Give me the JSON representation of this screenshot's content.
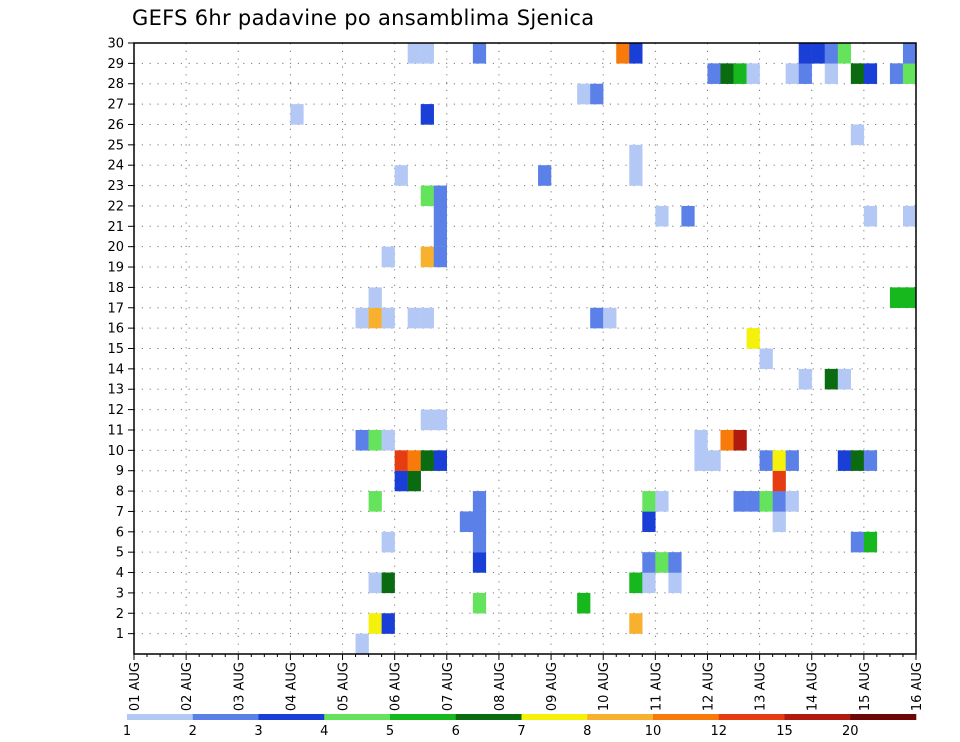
{
  "chart_data": {
    "type": "heatmap",
    "title": "GEFS 6hr padavine po ansamblima Sjenica",
    "x_tick_labels": [
      "01 AUG",
      "02 AUG",
      "03 AUG",
      "04 AUG",
      "05 AUG",
      "06 AUG",
      "07 AUG",
      "08 AUG",
      "09 AUG",
      "10 AUG",
      "11 AUG",
      "12 AUG",
      "13 AUG",
      "14 AUG",
      "15 AUG",
      "16 AUG"
    ],
    "x_range_days": [
      0,
      15
    ],
    "y_range_members": [
      0,
      30
    ],
    "y_tick_labels": [
      "1",
      "2",
      "3",
      "4",
      "5",
      "6",
      "7",
      "8",
      "9",
      "10",
      "11",
      "12",
      "13",
      "14",
      "15",
      "16",
      "17",
      "18",
      "19",
      "20",
      "21",
      "22",
      "23",
      "24",
      "25",
      "26",
      "27",
      "28",
      "29",
      "30"
    ],
    "grid": true,
    "colorbar": {
      "position": "bottom",
      "colors": [
        "#b4c8f5",
        "#5b80e8",
        "#1a3fd6",
        "#66e35c",
        "#17b81d",
        "#0a6b10",
        "#f5f10a",
        "#f7b12f",
        "#f77a0a",
        "#e63c11",
        "#b11a0e",
        "#6e0606"
      ],
      "labels": [
        "1",
        "2",
        "3",
        "4",
        "5",
        "6",
        "7",
        "8",
        "10",
        "12",
        "15",
        "20"
      ]
    },
    "cells": [
      {
        "t": 4.25,
        "m": 0,
        "c": 0
      },
      {
        "t": 4.5,
        "m": 1,
        "c": 6
      },
      {
        "t": 4.75,
        "m": 1,
        "c": 2
      },
      {
        "t": 9.5,
        "m": 1,
        "c": 7
      },
      {
        "t": 6.5,
        "m": 2,
        "c": 3
      },
      {
        "t": 8.5,
        "m": 2,
        "c": 4
      },
      {
        "t": 4.5,
        "m": 3,
        "c": 0
      },
      {
        "t": 4.75,
        "m": 3,
        "c": 5
      },
      {
        "t": 9.5,
        "m": 3,
        "c": 4
      },
      {
        "t": 9.75,
        "m": 3,
        "c": 0
      },
      {
        "t": 10.25,
        "m": 3,
        "c": 0
      },
      {
        "t": 6.5,
        "m": 4,
        "c": 2
      },
      {
        "t": 9.75,
        "m": 4,
        "c": 1
      },
      {
        "t": 10,
        "m": 4,
        "c": 3
      },
      {
        "t": 10.25,
        "m": 4,
        "c": 1
      },
      {
        "t": 4.75,
        "m": 5,
        "c": 0
      },
      {
        "t": 6.5,
        "m": 5,
        "c": 1
      },
      {
        "t": 13.75,
        "m": 5,
        "c": 1
      },
      {
        "t": 14,
        "m": 5,
        "c": 4
      },
      {
        "t": 6.25,
        "m": 6,
        "c": 1
      },
      {
        "t": 6.5,
        "m": 6,
        "c": 1
      },
      {
        "t": 9.75,
        "m": 6,
        "c": 2
      },
      {
        "t": 12.25,
        "m": 6,
        "c": 0
      },
      {
        "t": 4.5,
        "m": 7,
        "c": 3
      },
      {
        "t": 6.5,
        "m": 7,
        "c": 1
      },
      {
        "t": 9.75,
        "m": 7,
        "c": 3
      },
      {
        "t": 10,
        "m": 7,
        "c": 0
      },
      {
        "t": 11.5,
        "m": 7,
        "c": 1
      },
      {
        "t": 11.75,
        "m": 7,
        "c": 1
      },
      {
        "t": 12,
        "m": 7,
        "c": 3
      },
      {
        "t": 12.25,
        "m": 7,
        "c": 1
      },
      {
        "t": 12.5,
        "m": 7,
        "c": 0
      },
      {
        "t": 5,
        "m": 8,
        "c": 2
      },
      {
        "t": 5.25,
        "m": 8,
        "c": 5
      },
      {
        "t": 12.25,
        "m": 8,
        "c": 9
      },
      {
        "t": 5,
        "m": 9,
        "c": 9
      },
      {
        "t": 5.25,
        "m": 9,
        "c": 8
      },
      {
        "t": 5.5,
        "m": 9,
        "c": 5
      },
      {
        "t": 5.75,
        "m": 9,
        "c": 2
      },
      {
        "t": 10.75,
        "m": 9,
        "c": 0
      },
      {
        "t": 11,
        "m": 9,
        "c": 0
      },
      {
        "t": 12,
        "m": 9,
        "c": 1
      },
      {
        "t": 12.25,
        "m": 9,
        "c": 6
      },
      {
        "t": 12.5,
        "m": 9,
        "c": 1
      },
      {
        "t": 13.5,
        "m": 9,
        "c": 2
      },
      {
        "t": 13.75,
        "m": 9,
        "c": 5
      },
      {
        "t": 14,
        "m": 9,
        "c": 1
      },
      {
        "t": 4.25,
        "m": 10,
        "c": 1
      },
      {
        "t": 4.5,
        "m": 10,
        "c": 3
      },
      {
        "t": 4.75,
        "m": 10,
        "c": 0
      },
      {
        "t": 10.75,
        "m": 10,
        "c": 0
      },
      {
        "t": 11.25,
        "m": 10,
        "c": 8
      },
      {
        "t": 11.5,
        "m": 10,
        "c": 10
      },
      {
        "t": 5.5,
        "m": 11,
        "c": 0
      },
      {
        "t": 5.75,
        "m": 11,
        "c": 0
      },
      {
        "t": 12.75,
        "m": 13,
        "c": 0
      },
      {
        "t": 13.25,
        "m": 13,
        "c": 5
      },
      {
        "t": 13.5,
        "m": 13,
        "c": 0
      },
      {
        "t": 12,
        "m": 14,
        "c": 0
      },
      {
        "t": 11.75,
        "m": 15,
        "c": 6
      },
      {
        "t": 4.25,
        "m": 16,
        "c": 0
      },
      {
        "t": 4.5,
        "m": 16,
        "c": 7
      },
      {
        "t": 4.75,
        "m": 16,
        "c": 0
      },
      {
        "t": 5.25,
        "m": 16,
        "c": 0
      },
      {
        "t": 5.5,
        "m": 16,
        "c": 0
      },
      {
        "t": 8.75,
        "m": 16,
        "c": 1
      },
      {
        "t": 9,
        "m": 16,
        "c": 0
      },
      {
        "t": 4.5,
        "m": 17,
        "c": 0
      },
      {
        "t": 14.5,
        "m": 17,
        "c": 4
      },
      {
        "t": 14.75,
        "m": 17,
        "c": 4
      },
      {
        "t": 4.75,
        "m": 19,
        "c": 0
      },
      {
        "t": 5.5,
        "m": 19,
        "c": 7
      },
      {
        "t": 5.75,
        "m": 19,
        "c": 1
      },
      {
        "t": 5.75,
        "m": 20,
        "c": 1
      },
      {
        "t": 5.75,
        "m": 21,
        "c": 1
      },
      {
        "t": 10,
        "m": 21,
        "c": 0
      },
      {
        "t": 10.5,
        "m": 21,
        "c": 1
      },
      {
        "t": 14,
        "m": 21,
        "c": 0
      },
      {
        "t": 14.75,
        "m": 21,
        "c": 0
      },
      {
        "t": 5.5,
        "m": 22,
        "c": 3
      },
      {
        "t": 5.75,
        "m": 22,
        "c": 1
      },
      {
        "t": 5,
        "m": 23,
        "c": 0
      },
      {
        "t": 7.75,
        "m": 23,
        "c": 1
      },
      {
        "t": 9.5,
        "m": 23,
        "c": 0
      },
      {
        "t": 9.5,
        "m": 24,
        "c": 0
      },
      {
        "t": 13.75,
        "m": 25,
        "c": 0
      },
      {
        "t": 3,
        "m": 26,
        "c": 0
      },
      {
        "t": 5.5,
        "m": 26,
        "c": 2
      },
      {
        "t": 8.5,
        "m": 27,
        "c": 0
      },
      {
        "t": 8.75,
        "m": 27,
        "c": 1
      },
      {
        "t": 11,
        "m": 28,
        "c": 1
      },
      {
        "t": 11.25,
        "m": 28,
        "c": 5
      },
      {
        "t": 11.5,
        "m": 28,
        "c": 4
      },
      {
        "t": 11.75,
        "m": 28,
        "c": 0
      },
      {
        "t": 12.5,
        "m": 28,
        "c": 0
      },
      {
        "t": 12.75,
        "m": 28,
        "c": 1
      },
      {
        "t": 13.25,
        "m": 28,
        "c": 0
      },
      {
        "t": 13.75,
        "m": 28,
        "c": 5
      },
      {
        "t": 14,
        "m": 28,
        "c": 2
      },
      {
        "t": 14.5,
        "m": 28,
        "c": 1
      },
      {
        "t": 14.75,
        "m": 28,
        "c": 3
      },
      {
        "t": 5.25,
        "m": 29,
        "c": 0
      },
      {
        "t": 5.5,
        "m": 29,
        "c": 0
      },
      {
        "t": 6.5,
        "m": 29,
        "c": 1
      },
      {
        "t": 9.25,
        "m": 29,
        "c": 8
      },
      {
        "t": 9.5,
        "m": 29,
        "c": 2
      },
      {
        "t": 12.75,
        "m": 29,
        "c": 2
      },
      {
        "t": 13,
        "m": 29,
        "c": 2
      },
      {
        "t": 13.25,
        "m": 29,
        "c": 1
      },
      {
        "t": 13.5,
        "m": 29,
        "c": 3
      },
      {
        "t": 14.75,
        "m": 29,
        "c": 1
      }
    ]
  }
}
